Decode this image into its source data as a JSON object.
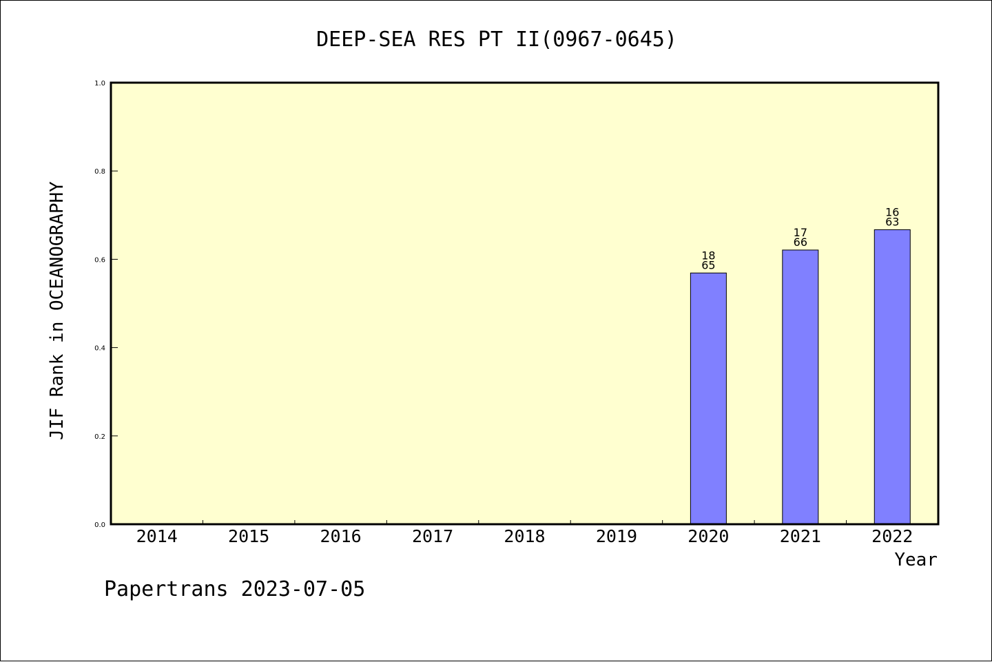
{
  "chart_data": {
    "type": "bar",
    "title": "DEEP-SEA RES PT II(0967-0645)",
    "xlabel": "Year",
    "ylabel": "JIF Rank in OCEANOGRAPHY",
    "categories": [
      "2014",
      "2015",
      "2016",
      "2017",
      "2018",
      "2019",
      "2020",
      "2021",
      "2022"
    ],
    "values": [
      null,
      null,
      null,
      null,
      null,
      null,
      0.569,
      0.621,
      0.667
    ],
    "bar_labels": [
      null,
      null,
      null,
      null,
      null,
      null,
      [
        "18",
        "65"
      ],
      [
        "17",
        "66"
      ],
      [
        "16",
        "63"
      ]
    ],
    "ylim": [
      0,
      1.0
    ],
    "yticks": [
      "0.0",
      "0.2",
      "0.4",
      "0.6",
      "0.8",
      "1.0"
    ],
    "grid": false,
    "colors": {
      "plot_background": "#ffffd0",
      "bar_fill": "#8080ff",
      "bar_edge": "#000000"
    }
  },
  "footer": {
    "credit": "Papertrans 2023-07-05"
  }
}
